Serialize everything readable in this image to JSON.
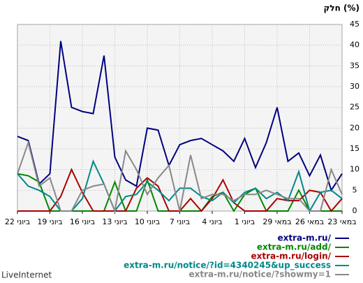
{
  "chart_data": {
    "type": "line",
    "title": "חלק (%)",
    "categories": [
      "22 ביוני",
      null,
      null,
      "19 ביוני",
      null,
      null,
      "16 ביוני",
      null,
      null,
      "13 ביוני",
      null,
      null,
      "10 ביוני",
      null,
      null,
      "7 ביוני",
      null,
      null,
      "4 ביוני",
      null,
      null,
      "1 ביוני",
      null,
      null,
      "29 במאי",
      null,
      null,
      "26 במאי",
      null,
      null,
      "23 במאי"
    ],
    "series": [
      {
        "name": "extra-m.ru/",
        "color": "#000080",
        "values": [
          18,
          17,
          6.5,
          9,
          41,
          25,
          24,
          23.5,
          37.5,
          13,
          7.5,
          6,
          20,
          19.5,
          11,
          16,
          17,
          17.5,
          16,
          14.5,
          12,
          17.5,
          10.5,
          16.5,
          25,
          12,
          14,
          8.5,
          13.5,
          5,
          9
        ]
      },
      {
        "name": "extra-m.ru/add/",
        "color": "#008800",
        "values": [
          9,
          8.5,
          7,
          0,
          0,
          0,
          0,
          0,
          0,
          7,
          0,
          0,
          7.5,
          0,
          0,
          0,
          0,
          0,
          3.5,
          4.5,
          0,
          4,
          5.5,
          0,
          0,
          0,
          5,
          0,
          0,
          0,
          0
        ]
      },
      {
        "name": "extra-m.ru/login/",
        "color": "#aa0000",
        "values": [
          0,
          0,
          0,
          0,
          3.5,
          10,
          4.5,
          0,
          0,
          0,
          0,
          5.5,
          8,
          6,
          0,
          0,
          3,
          0,
          3,
          7.5,
          2,
          0,
          0,
          0,
          3,
          2.5,
          2.5,
          5,
          4.5,
          0,
          3
        ]
      },
      {
        "name": "extra-m.ru/notice/?id=4340245&up_success",
        "color": "#008888",
        "values": [
          9,
          6,
          5,
          3.5,
          0,
          0,
          3,
          12,
          6.5,
          0,
          3.5,
          4,
          7,
          5,
          2.5,
          5.5,
          5.5,
          3.5,
          2.5,
          4.5,
          2,
          4.5,
          5.5,
          3,
          4.5,
          2.5,
          9.5,
          0,
          4.5,
          5,
          3
        ]
      },
      {
        "name": "extra-m.ru/notice/?showmy=1",
        "color": "#888888",
        "values": [
          9,
          16.5,
          6,
          8,
          0,
          0,
          5,
          6,
          6.5,
          0,
          14.5,
          10,
          4,
          8,
          11,
          0,
          13.5,
          3,
          4,
          4,
          2.5,
          4,
          4,
          5,
          4,
          3,
          3,
          0,
          0,
          10,
          4
        ]
      }
    ],
    "ylim": [
      0,
      45
    ],
    "yticks": [
      0,
      5,
      10,
      15,
      20,
      25,
      30,
      35,
      40,
      45
    ],
    "grid": true,
    "footer": "LiveInternet"
  }
}
